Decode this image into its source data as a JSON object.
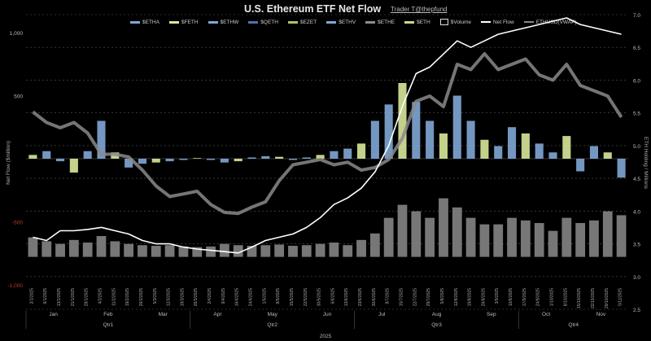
{
  "chart_data": {
    "type": "bar",
    "title": "U.S. Ethereum ETF Net Flow",
    "credit": "Trader T@thepfund",
    "ylabel_left": "Net Flow ($million)",
    "ylabel_right": "ETH Holding / Millions",
    "xlabel": "2025",
    "left_axis": {
      "ticks": [
        1000,
        500,
        0,
        -500,
        -1000
      ],
      "tick_labels": [
        "1,000",
        "500",
        "",
        "-500",
        "-1,000"
      ],
      "ylim": [
        -1000,
        1000
      ]
    },
    "right_axis": {
      "ticks": [
        2.5,
        3.0,
        3.5,
        4.0,
        4.5,
        5.0,
        5.5,
        6.0,
        6.5,
        7.0
      ],
      "tick_labels": [
        "2.5",
        "3.0",
        "3.5",
        "4.0",
        "4.5",
        "5.0",
        "5.5",
        "6.0",
        "6.5",
        "7.0"
      ],
      "ylim": [
        2.5,
        7.0
      ]
    },
    "legend": [
      {
        "name": "$ETHA",
        "color": "#7fa7d6",
        "kind": "bar"
      },
      {
        "name": "$FETH",
        "color": "#d8e89a",
        "kind": "bar"
      },
      {
        "name": "$ETHW",
        "color": "#7fa7d6",
        "kind": "bar"
      },
      {
        "name": "$QETH",
        "color": "#4f73a8",
        "kind": "bar"
      },
      {
        "name": "$EZET",
        "color": "#a9c46f",
        "kind": "bar"
      },
      {
        "name": "$ETHV",
        "color": "#7fa7d6",
        "kind": "bar"
      },
      {
        "name": "$ETHE",
        "color": "#8c8c8c",
        "kind": "bar"
      },
      {
        "name": "$ETH",
        "color": "#c9d98a",
        "kind": "bar"
      },
      {
        "name": "$Volume",
        "color": "#ffffff",
        "kind": "box"
      },
      {
        "name": "Net Flow",
        "color": "#ffffff",
        "kind": "line"
      },
      {
        "name": "ETHUSD(VWAP)",
        "color": "#888888",
        "kind": "line"
      }
    ],
    "months": [
      "Jan",
      "Feb",
      "Mar",
      "Apr",
      "May",
      "Jun",
      "Jul",
      "Aug",
      "Sep",
      "Oct",
      "Nov"
    ],
    "quarters": [
      "Qtr1",
      "Qtr2",
      "Qtr3",
      "Qtr4"
    ],
    "year": "2025",
    "dates": [
      "2/1/2025",
      "6/1/2025",
      "13/1/2025",
      "21/1/2025",
      "28/1/2025",
      "4/2/2025",
      "11/2/2025",
      "19/2/2025",
      "26/2/2025",
      "5/3/2025",
      "12/3/2025",
      "19/3/2025",
      "26/3/2025",
      "2/4/2025",
      "9/4/2025",
      "16/4/2025",
      "24/4/2025",
      "1/5/2025",
      "8/5/2025",
      "15/5/2025",
      "22/5/2025",
      "30/5/2025",
      "6/6/2025",
      "13/6/2025",
      "23/6/2025",
      "30/6/2025",
      "8/7/2025",
      "15/7/2025",
      "22/7/2025",
      "29/7/2025",
      "5/8/2025",
      "12/8/2025",
      "19/8/2025",
      "26/8/2025",
      "3/9/2025",
      "10/9/2025",
      "17/9/2025",
      "24/9/2025",
      "1/10/2025",
      "8/10/2025",
      "15/10/2025",
      "22/10/2025",
      "29/10/2025",
      "5/11/2025"
    ],
    "series": [
      {
        "name": "Net Flow ($M)",
        "values": [
          30,
          60,
          -20,
          -110,
          60,
          300,
          50,
          -70,
          -40,
          -30,
          -20,
          -10,
          5,
          -10,
          -30,
          -20,
          10,
          20,
          15,
          -10,
          10,
          30,
          60,
          80,
          120,
          300,
          430,
          600,
          450,
          300,
          200,
          500,
          300,
          150,
          100,
          250,
          200,
          120,
          50,
          180,
          -100,
          100,
          50,
          -150
        ]
      },
      {
        "name": "Volume ($M)",
        "values": [
          150,
          120,
          100,
          130,
          110,
          160,
          120,
          100,
          90,
          85,
          90,
          80,
          75,
          80,
          100,
          90,
          85,
          90,
          95,
          85,
          90,
          100,
          110,
          90,
          130,
          180,
          300,
          400,
          350,
          300,
          450,
          380,
          300,
          250,
          250,
          300,
          280,
          260,
          200,
          300,
          260,
          280,
          350,
          320
        ]
      },
      {
        "name": "Net Flow",
        "values": [
          3.6,
          3.55,
          3.7,
          3.7,
          3.72,
          3.75,
          3.7,
          3.65,
          3.55,
          3.5,
          3.5,
          3.45,
          3.42,
          3.4,
          3.38,
          3.36,
          3.45,
          3.55,
          3.6,
          3.65,
          3.75,
          3.9,
          4.1,
          4.2,
          4.35,
          4.6,
          5.0,
          5.6,
          6.1,
          6.2,
          6.4,
          6.6,
          6.5,
          6.6,
          6.7,
          6.75,
          6.8,
          6.85,
          6.9,
          6.95,
          6.85,
          6.8,
          6.75,
          6.7
        ]
      },
      {
        "name": "ETHUSD(VWAP)",
        "values": [
          3500,
          3300,
          3200,
          3300,
          3100,
          2700,
          2700,
          2650,
          2400,
          2100,
          1900,
          1950,
          2000,
          1750,
          1600,
          1580,
          1700,
          1800,
          2200,
          2500,
          2550,
          2600,
          2500,
          2550,
          2400,
          2450,
          2600,
          3000,
          3700,
          3800,
          3600,
          4400,
          4300,
          4600,
          4300,
          4400,
          4500,
          4200,
          4100,
          4400,
          4000,
          3900,
          3800,
          3400
        ]
      }
    ]
  }
}
